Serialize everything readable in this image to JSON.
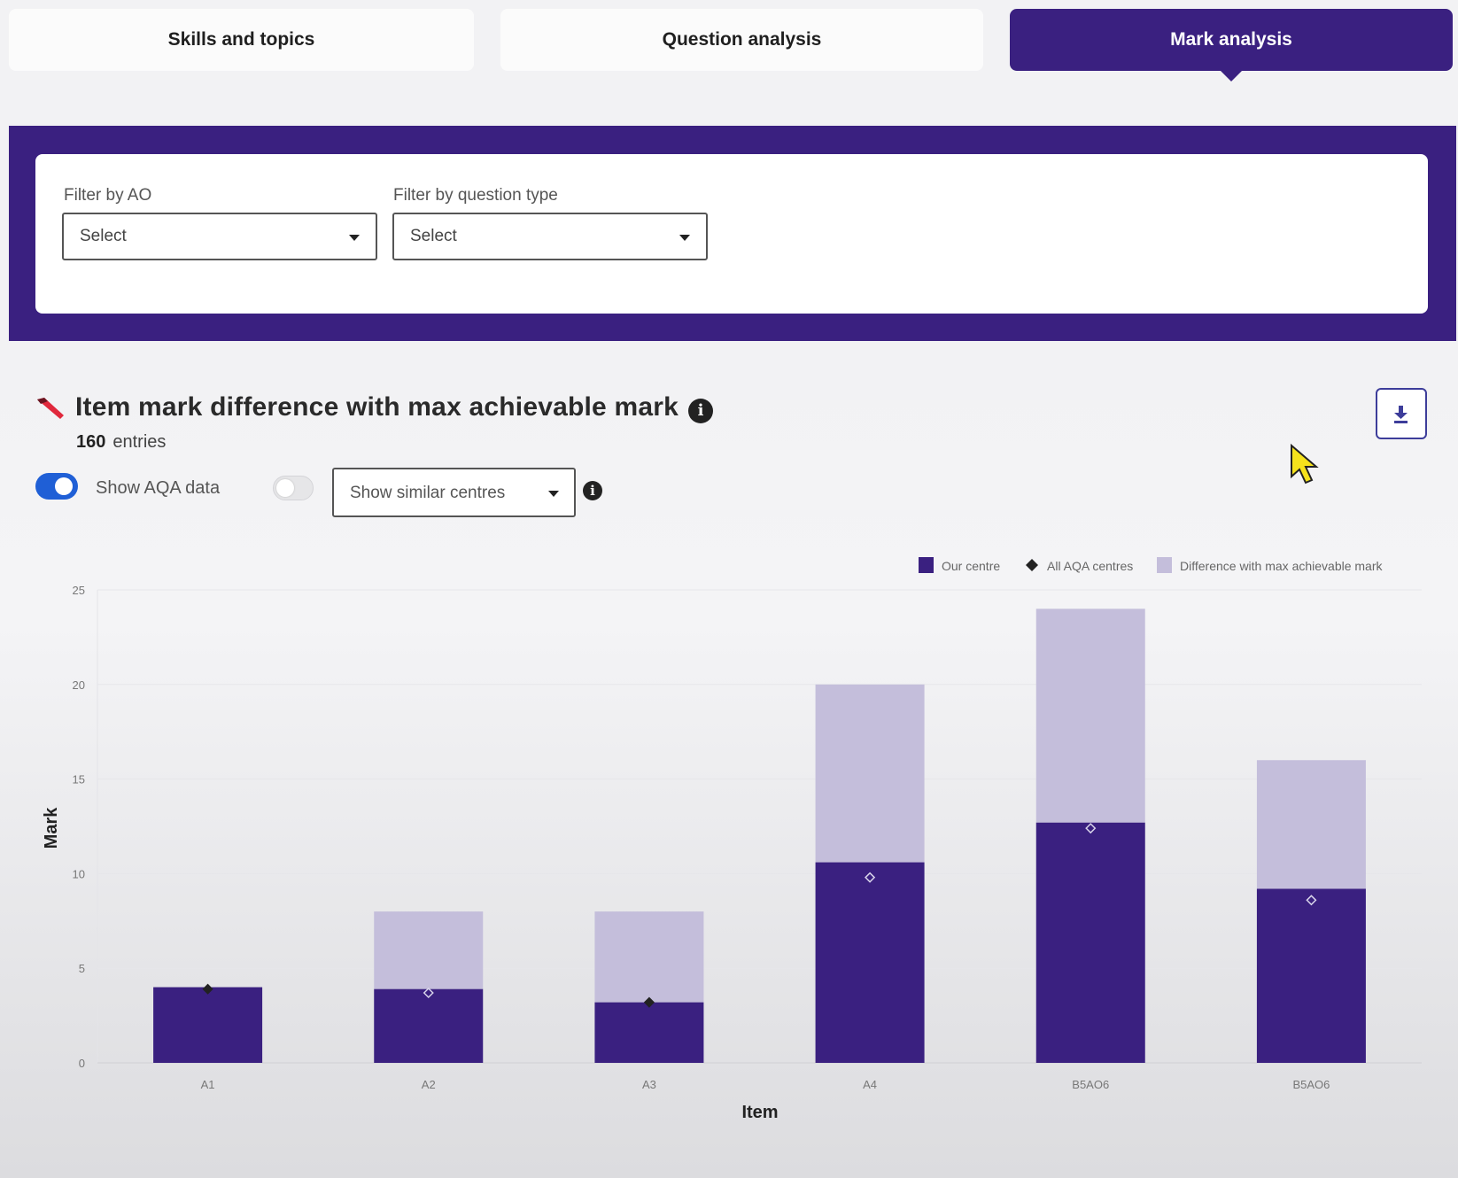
{
  "tabs": [
    {
      "label": "Skills and topics",
      "active": false
    },
    {
      "label": "Question analysis",
      "active": false
    },
    {
      "label": "Mark analysis",
      "active": true
    }
  ],
  "filters": {
    "ao": {
      "label": "Filter by AO",
      "value": "Select"
    },
    "question_type": {
      "label": "Filter by question type",
      "value": "Select"
    }
  },
  "section": {
    "title": "Item mark difference with max achievable mark",
    "entries_count": "160",
    "entries_label": "entries"
  },
  "controls": {
    "show_aqa_label": "Show AQA data",
    "show_aqa_on": true,
    "similar_toggle_on": false,
    "similar_centres_value": "Show similar centres"
  },
  "colors": {
    "brand": "#3a2080",
    "our_centre": "#3a2080",
    "difference": "#c4bedb"
  },
  "chart_data": {
    "type": "bar",
    "stacked": true,
    "xlabel": "Item",
    "ylabel": "Mark",
    "ylim": [
      0,
      25
    ],
    "yticks": [
      0,
      5,
      10,
      15,
      20,
      25
    ],
    "categories": [
      "A1",
      "A2",
      "A3",
      "A4",
      "B5AO6",
      "B5AO6"
    ],
    "series": [
      {
        "name": "Our centre",
        "values": [
          4,
          3.9,
          3.2,
          10.6,
          12.7,
          9.2
        ]
      },
      {
        "name": "Difference with max achievable mark",
        "values": [
          0,
          4.1,
          4.8,
          9.4,
          11.3,
          6.8
        ]
      },
      {
        "name": "All AQA centres",
        "kind": "marker",
        "values": [
          3.9,
          3.7,
          3.2,
          9.8,
          12.4,
          8.6
        ]
      }
    ],
    "legend_position": "top-right"
  }
}
